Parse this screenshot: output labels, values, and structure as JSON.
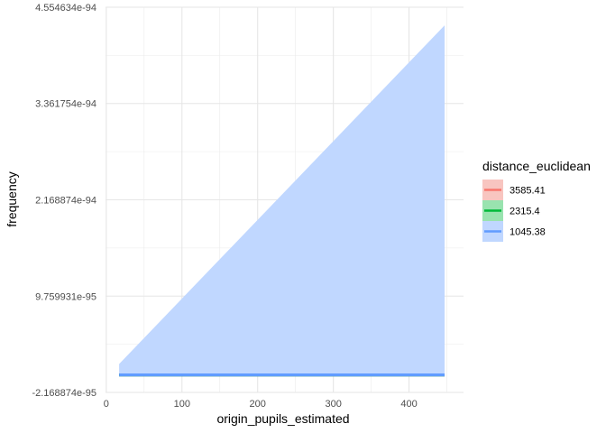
{
  "chart_data": {
    "type": "area",
    "xlabel": "origin_pupils_estimated",
    "ylabel": "frequency",
    "xlim": [
      -1,
      472
    ],
    "ylim": [
      -2.168874e-95,
      4.554634e-94
    ],
    "x_ticks": [
      0,
      100,
      200,
      300,
      400
    ],
    "x_tick_labels": [
      "0",
      "100",
      "200",
      "300",
      "400"
    ],
    "y_ticks": [
      -2.168874e-95,
      9.759931e-95,
      2.168874e-94,
      3.361754e-94,
      4.554634e-94
    ],
    "y_tick_labels": [
      "-2.168874e-95",
      "9.759931e-95",
      "2.168874e-94",
      "3.361754e-94",
      "4.554634e-94"
    ],
    "grid": true,
    "legend": {
      "title": "distance_euclidean",
      "position": "right",
      "entries": [
        {
          "label": "3585.41",
          "line_color": "#F8766D",
          "fill_color": "#F8C5C0"
        },
        {
          "label": "2315.4",
          "line_color": "#00BA38",
          "fill_color": "#99E3AF"
        },
        {
          "label": "1045.38",
          "line_color": "#619CFF",
          "fill_color": "#C0D7FF"
        }
      ]
    },
    "series": [
      {
        "name": "1045.38",
        "color": "#619CFF",
        "fill": "#C0D7FF",
        "x": [
          17,
          447
        ],
        "lower": [
          0,
          0
        ],
        "upper": [
          0,
          0
        ],
        "ribbon_lower": [
          0,
          0
        ],
        "ribbon_upper": [
          1.35e-95,
          4.33e-94
        ]
      },
      {
        "name": "2315.4",
        "color": "#00BA38",
        "fill": "#99E3AF",
        "x": [
          17,
          447
        ],
        "upper": [
          0,
          0
        ]
      },
      {
        "name": "3585.41",
        "color": "#F8766D",
        "fill": "#F8C5C0",
        "x": [
          17,
          447
        ],
        "upper": [
          0,
          0
        ]
      }
    ]
  }
}
